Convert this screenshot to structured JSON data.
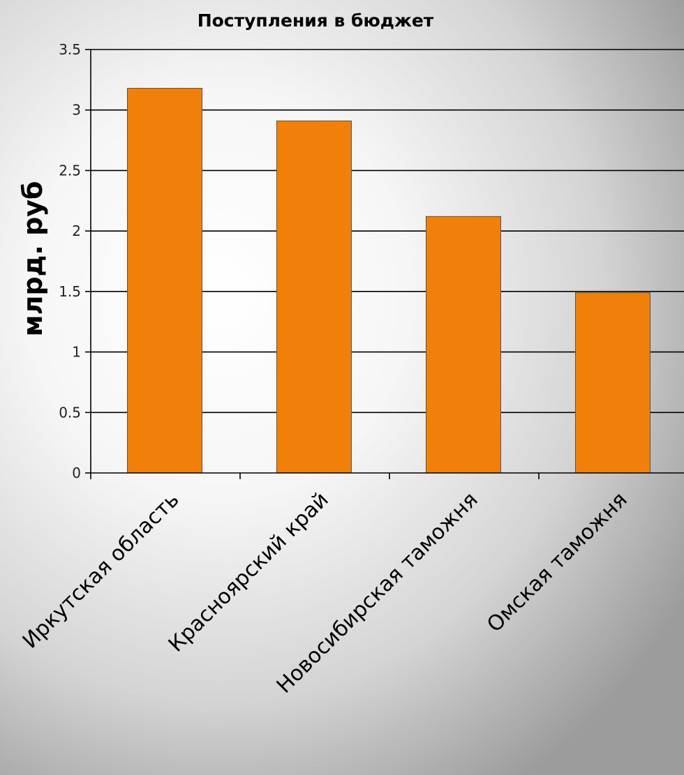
{
  "chart_data": {
    "type": "bar",
    "title": "Поступления в бюджет",
    "ylabel": "млрд. руб",
    "xlabel": "",
    "categories": [
      "Иркутская область",
      "Красноярский край",
      "Новосибирская таможня",
      "Омская таможня"
    ],
    "values": [
      3.18,
      2.91,
      2.12,
      1.49
    ],
    "ylim": [
      0,
      3.5
    ],
    "yticks": [
      "0",
      "0.5",
      "1",
      "1.5",
      "2",
      "2.5",
      "3",
      "3.5"
    ],
    "grid": true,
    "legend": "none",
    "bar_color": "#f0800a"
  }
}
